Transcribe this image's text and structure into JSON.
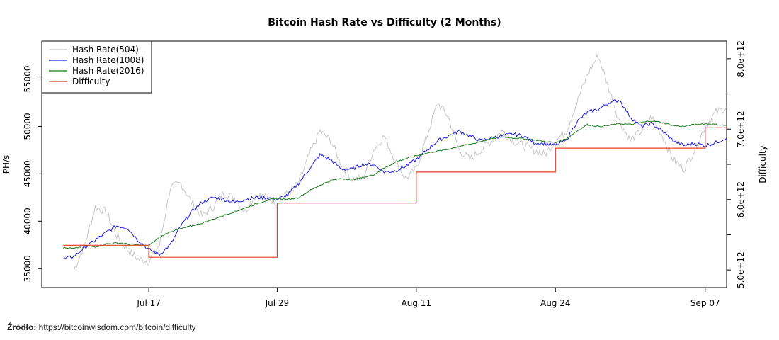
{
  "source": {
    "label": "Źródło:",
    "url": "https://bitcoinwisdom.com/bitcoin/difficulty"
  },
  "chart_data": {
    "type": "line",
    "title": "Bitcoin Hash Rate vs Difficulty (2 Months)",
    "xlabel": "",
    "ylabel": "PH/s",
    "y2label": "Difficulty",
    "x_range": [
      "2018-07-07",
      "2018-09-09"
    ],
    "x_ticks": [
      {
        "date": "2018-07-17",
        "label": "Jul 17"
      },
      {
        "date": "2018-07-29",
        "label": "Jul 29"
      },
      {
        "date": "2018-08-11",
        "label": "Aug 11"
      },
      {
        "date": "2018-08-24",
        "label": "Aug 24"
      },
      {
        "date": "2018-09-07",
        "label": "Sep 07"
      }
    ],
    "ylim": [
      33000,
      59000
    ],
    "y_ticks": [
      35000,
      40000,
      45000,
      50000,
      55000
    ],
    "y2lim": [
      4750000000000.0,
      8250000000000.0
    ],
    "y2_ticks": [
      {
        "value": 5000000000000.0,
        "label": "5.0e+12"
      },
      {
        "value": 6000000000000.0,
        "label": "6.0e+12"
      },
      {
        "value": 7000000000000.0,
        "label": "7.0e+12"
      },
      {
        "value": 8000000000000.0,
        "label": "8.0e+12"
      }
    ],
    "y2_minor_ticks": [
      5500000000000.0,
      6500000000000.0,
      7500000000000.0
    ],
    "grid": false,
    "legend_position": "top-left",
    "series": [
      {
        "name": "Hash Rate(504)",
        "color": "#c8c8c8",
        "axis": "left",
        "dates": [
          "2018-07-10",
          "2018-07-11",
          "2018-07-12",
          "2018-07-13",
          "2018-07-14",
          "2018-07-15",
          "2018-07-16",
          "2018-07-17",
          "2018-07-18",
          "2018-07-19",
          "2018-07-20",
          "2018-07-21",
          "2018-07-22",
          "2018-07-23",
          "2018-07-24",
          "2018-07-25",
          "2018-07-26",
          "2018-07-27",
          "2018-07-28",
          "2018-07-29",
          "2018-07-30",
          "2018-07-31",
          "2018-08-01",
          "2018-08-02",
          "2018-08-03",
          "2018-08-04",
          "2018-08-05",
          "2018-08-06",
          "2018-08-07",
          "2018-08-08",
          "2018-08-09",
          "2018-08-10",
          "2018-08-11",
          "2018-08-12",
          "2018-08-13",
          "2018-08-14",
          "2018-08-15",
          "2018-08-16",
          "2018-08-17",
          "2018-08-18",
          "2018-08-19",
          "2018-08-20",
          "2018-08-21",
          "2018-08-22",
          "2018-08-23",
          "2018-08-24",
          "2018-08-25",
          "2018-08-26",
          "2018-08-27",
          "2018-08-28",
          "2018-08-29",
          "2018-08-30",
          "2018-08-31",
          "2018-09-01",
          "2018-09-02",
          "2018-09-03",
          "2018-09-04",
          "2018-09-05",
          "2018-09-06",
          "2018-09-07",
          "2018-09-08",
          "2018-09-09"
        ],
        "values": [
          34800,
          37500,
          41500,
          41000,
          38500,
          37000,
          36000,
          35800,
          37500,
          43500,
          44000,
          42000,
          40500,
          41500,
          43000,
          42500,
          41000,
          42800,
          42500,
          42000,
          43000,
          44000,
          47000,
          49500,
          48500,
          46000,
          44500,
          44500,
          47500,
          49000,
          46500,
          44500,
          45500,
          49000,
          52500,
          51000,
          47500,
          46500,
          47500,
          48500,
          49500,
          48500,
          48000,
          47500,
          47000,
          48500,
          49500,
          52500,
          55500,
          57500,
          54000,
          50500,
          48500,
          49500,
          51000,
          49000,
          46500,
          45500,
          47500,
          50000,
          51500,
          52000
        ]
      },
      {
        "name": "Hash Rate(1008)",
        "color": "#1c1ce0",
        "axis": "left",
        "dates": [
          "2018-07-09",
          "2018-07-10",
          "2018-07-11",
          "2018-07-12",
          "2018-07-13",
          "2018-07-14",
          "2018-07-15",
          "2018-07-16",
          "2018-07-17",
          "2018-07-18",
          "2018-07-19",
          "2018-07-20",
          "2018-07-21",
          "2018-07-22",
          "2018-07-23",
          "2018-07-24",
          "2018-07-25",
          "2018-07-26",
          "2018-07-27",
          "2018-07-28",
          "2018-07-29",
          "2018-07-30",
          "2018-07-31",
          "2018-08-01",
          "2018-08-02",
          "2018-08-03",
          "2018-08-04",
          "2018-08-05",
          "2018-08-06",
          "2018-08-07",
          "2018-08-08",
          "2018-08-09",
          "2018-08-10",
          "2018-08-11",
          "2018-08-12",
          "2018-08-13",
          "2018-08-14",
          "2018-08-15",
          "2018-08-16",
          "2018-08-17",
          "2018-08-18",
          "2018-08-19",
          "2018-08-20",
          "2018-08-21",
          "2018-08-22",
          "2018-08-23",
          "2018-08-24",
          "2018-08-25",
          "2018-08-26",
          "2018-08-27",
          "2018-08-28",
          "2018-08-29",
          "2018-08-30",
          "2018-08-31",
          "2018-09-01",
          "2018-09-02",
          "2018-09-03",
          "2018-09-04",
          "2018-09-05",
          "2018-09-06",
          "2018-09-07",
          "2018-09-08",
          "2018-09-09"
        ],
        "values": [
          36000,
          36300,
          37200,
          38000,
          38800,
          39500,
          39300,
          38000,
          37000,
          36500,
          37500,
          39500,
          41000,
          42000,
          42500,
          42300,
          42000,
          42300,
          42500,
          42500,
          42300,
          42800,
          44000,
          45500,
          47000,
          46500,
          45500,
          45500,
          46000,
          46000,
          45200,
          45300,
          45800,
          46500,
          47500,
          48500,
          49000,
          49500,
          49000,
          48500,
          48800,
          49000,
          49200,
          49000,
          48300,
          48200,
          48000,
          48500,
          50500,
          51500,
          51800,
          52500,
          52800,
          51000,
          50000,
          50300,
          49500,
          48500,
          48000,
          48200,
          48000,
          48300,
          48800
        ]
      },
      {
        "name": "Hash Rate(2016)",
        "color": "#1a7a1a",
        "axis": "left",
        "dates": [
          "2018-07-09",
          "2018-07-10",
          "2018-07-11",
          "2018-07-12",
          "2018-07-13",
          "2018-07-14",
          "2018-07-15",
          "2018-07-16",
          "2018-07-17",
          "2018-07-18",
          "2018-07-19",
          "2018-07-20",
          "2018-07-21",
          "2018-07-22",
          "2018-07-23",
          "2018-07-24",
          "2018-07-25",
          "2018-07-26",
          "2018-07-27",
          "2018-07-28",
          "2018-07-29",
          "2018-07-30",
          "2018-07-31",
          "2018-08-01",
          "2018-08-02",
          "2018-08-03",
          "2018-08-04",
          "2018-08-05",
          "2018-08-06",
          "2018-08-07",
          "2018-08-08",
          "2018-08-09",
          "2018-08-10",
          "2018-08-11",
          "2018-08-12",
          "2018-08-13",
          "2018-08-14",
          "2018-08-15",
          "2018-08-16",
          "2018-08-17",
          "2018-08-18",
          "2018-08-19",
          "2018-08-20",
          "2018-08-21",
          "2018-08-22",
          "2018-08-23",
          "2018-08-24",
          "2018-08-25",
          "2018-08-26",
          "2018-08-27",
          "2018-08-28",
          "2018-08-29",
          "2018-08-30",
          "2018-08-31",
          "2018-09-01",
          "2018-09-02",
          "2018-09-03",
          "2018-09-04",
          "2018-09-05",
          "2018-09-06",
          "2018-09-07",
          "2018-09-08",
          "2018-09-09"
        ],
        "values": [
          37200,
          37100,
          37400,
          37300,
          37600,
          37700,
          37600,
          37500,
          37400,
          38300,
          38900,
          39200,
          39500,
          39800,
          40200,
          40600,
          41000,
          41400,
          41800,
          42200,
          42400,
          42300,
          42500,
          43200,
          43800,
          44300,
          44500,
          44400,
          44600,
          44900,
          45600,
          46200,
          46600,
          46900,
          47200,
          47400,
          47600,
          47900,
          48100,
          48400,
          48700,
          48900,
          48800,
          48700,
          48600,
          48400,
          48300,
          48700,
          49500,
          50200,
          50000,
          50100,
          50300,
          50200,
          50400,
          50600,
          50400,
          50100,
          50000,
          50200,
          50300,
          50200,
          50100
        ]
      },
      {
        "name": "Difficulty",
        "color": "#e83c2a",
        "axis": "right",
        "step": true,
        "dates": [
          "2018-07-09",
          "2018-07-17",
          "2018-07-29",
          "2018-08-11",
          "2018-08-24",
          "2018-09-07",
          "2018-09-09"
        ],
        "values": [
          5350000000000.0,
          5180000000000.0,
          5950000000000.0,
          6390000000000.0,
          6730000000000.0,
          7020000000000.0,
          7020000000000.0
        ]
      }
    ]
  }
}
